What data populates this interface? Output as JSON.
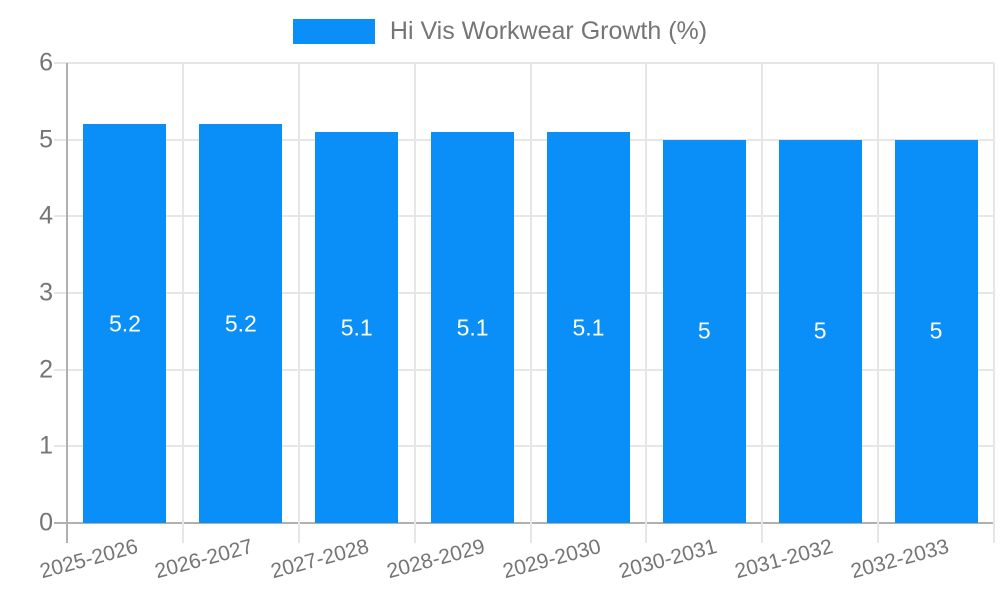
{
  "page": {
    "background": "#ffffff"
  },
  "legend": {
    "swatch_color": "#0a8ff8"
  },
  "chart_data": {
    "type": "bar",
    "title": "Hi Vis Workwear Growth (%)",
    "categories": [
      "2025-2026",
      "2026-2027",
      "2027-2028",
      "2028-2029",
      "2029-2030",
      "2030-2031",
      "2031-2032",
      "2032-2033"
    ],
    "values": [
      5.2,
      5.2,
      5.1,
      5.1,
      5.1,
      5,
      5,
      5
    ],
    "value_labels": [
      "5.2",
      "5.2",
      "5.1",
      "5.1",
      "5.1",
      "5",
      "5",
      "5"
    ],
    "xlabel": "",
    "ylabel": "",
    "ylim": [
      0,
      6
    ],
    "yticks": [
      0,
      1,
      2,
      3,
      4,
      5,
      6
    ],
    "grid": true,
    "legend_position": "top-center",
    "x_label_rotation_deg": -15,
    "bar_color": "#0a8ff8",
    "bar_label_color": "#ffffff",
    "axis_text_color": "#757575",
    "gridline_color": "#e6e6e6",
    "axis_line_color": "#b0b0b0"
  }
}
